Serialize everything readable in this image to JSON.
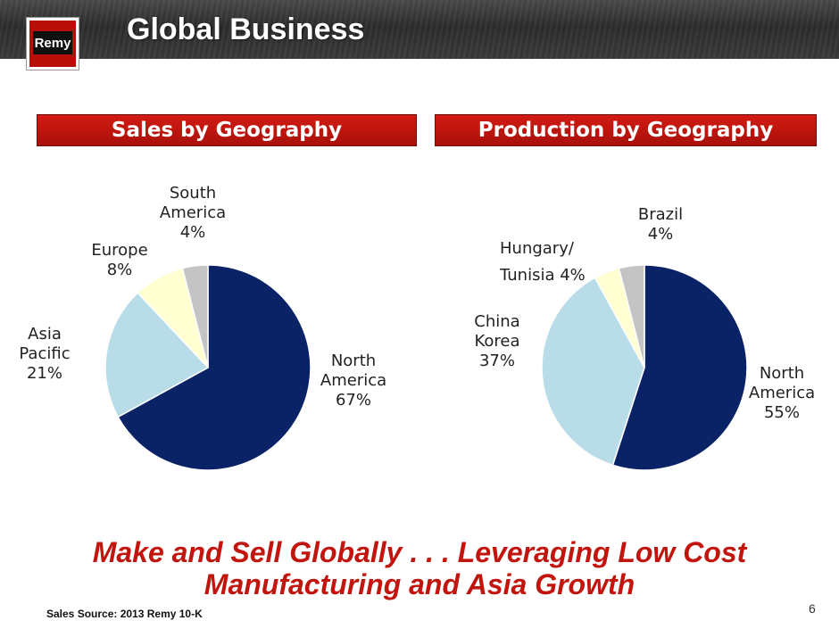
{
  "slide": {
    "title": "Global Business",
    "logo_text": "Remy",
    "tagline_line1": "Make and Sell Globally . . . Leveraging Low Cost",
    "tagline_line2": "Manufacturing and Asia Growth",
    "source": "Sales Source: 2013 Remy 10-K",
    "page_number": "6"
  },
  "chart_data": [
    {
      "type": "pie",
      "title": "Sales by Geography",
      "labels": [
        "North America",
        "Asia Pacific",
        "Europe",
        "South America"
      ],
      "values": [
        67,
        21,
        8,
        4
      ],
      "unit": "%",
      "display_labels": [
        "North\nAmerica\n67%",
        "Asia\nPacific\n21%",
        "Europe\n8%",
        "South\nAmerica\n4%"
      ],
      "colors": [
        "#0a2366",
        "#b9dde8",
        "#ffffd2",
        "#c4c4c4"
      ]
    },
    {
      "type": "pie",
      "title": "Production by Geography",
      "labels": [
        "North America",
        "China Korea",
        "Hungary/ Tunisia",
        "Brazil"
      ],
      "values": [
        55,
        37,
        4,
        4
      ],
      "unit": "%",
      "display_labels": [
        "North\nAmerica\n55%",
        "China\nKorea\n37%",
        "Hungary/\nTunisia  4%",
        "Brazil\n4%"
      ],
      "colors": [
        "#0a2366",
        "#b9dde8",
        "#ffffd2",
        "#c4c4c4"
      ]
    }
  ]
}
